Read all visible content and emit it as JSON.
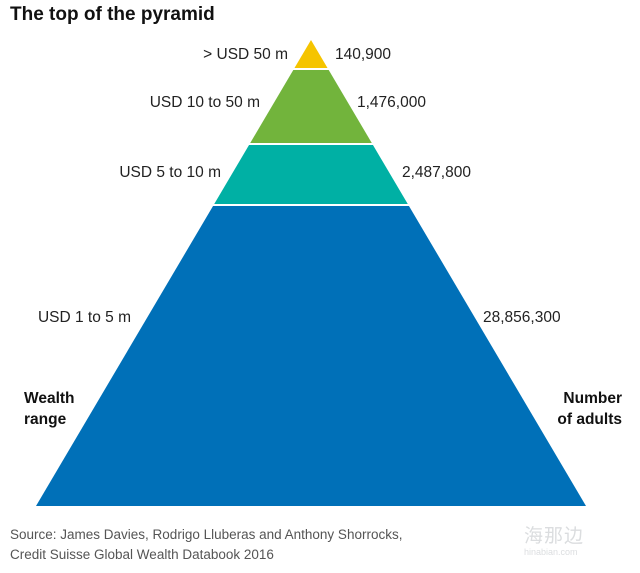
{
  "chart_data": {
    "type": "pyramid",
    "title": "The top of the pyramid",
    "left_axis_label": [
      "Wealth",
      "range"
    ],
    "right_axis_label": [
      "Number",
      "of adults"
    ],
    "tiers": [
      {
        "range": "> USD 50 m",
        "adults": "140,900",
        "color": "#f5c400"
      },
      {
        "range": "USD 10 to 50 m",
        "adults": "1,476,000",
        "color": "#72b43c"
      },
      {
        "range": "USD 5 to 10 m",
        "adults": "2,487,800",
        "color": "#00b0a4"
      },
      {
        "range": "USD 1 to 5 m",
        "adults": "28,856,300",
        "color": "#0070b8"
      }
    ],
    "source": [
      "Source: James Davies, Rodrigo Lluberas and Anthony Shorrocks,",
      "Credit Suisse Global Wealth Databook 2016"
    ]
  },
  "watermark": {
    "text": "海那边",
    "subtext": "hinabian.com"
  }
}
